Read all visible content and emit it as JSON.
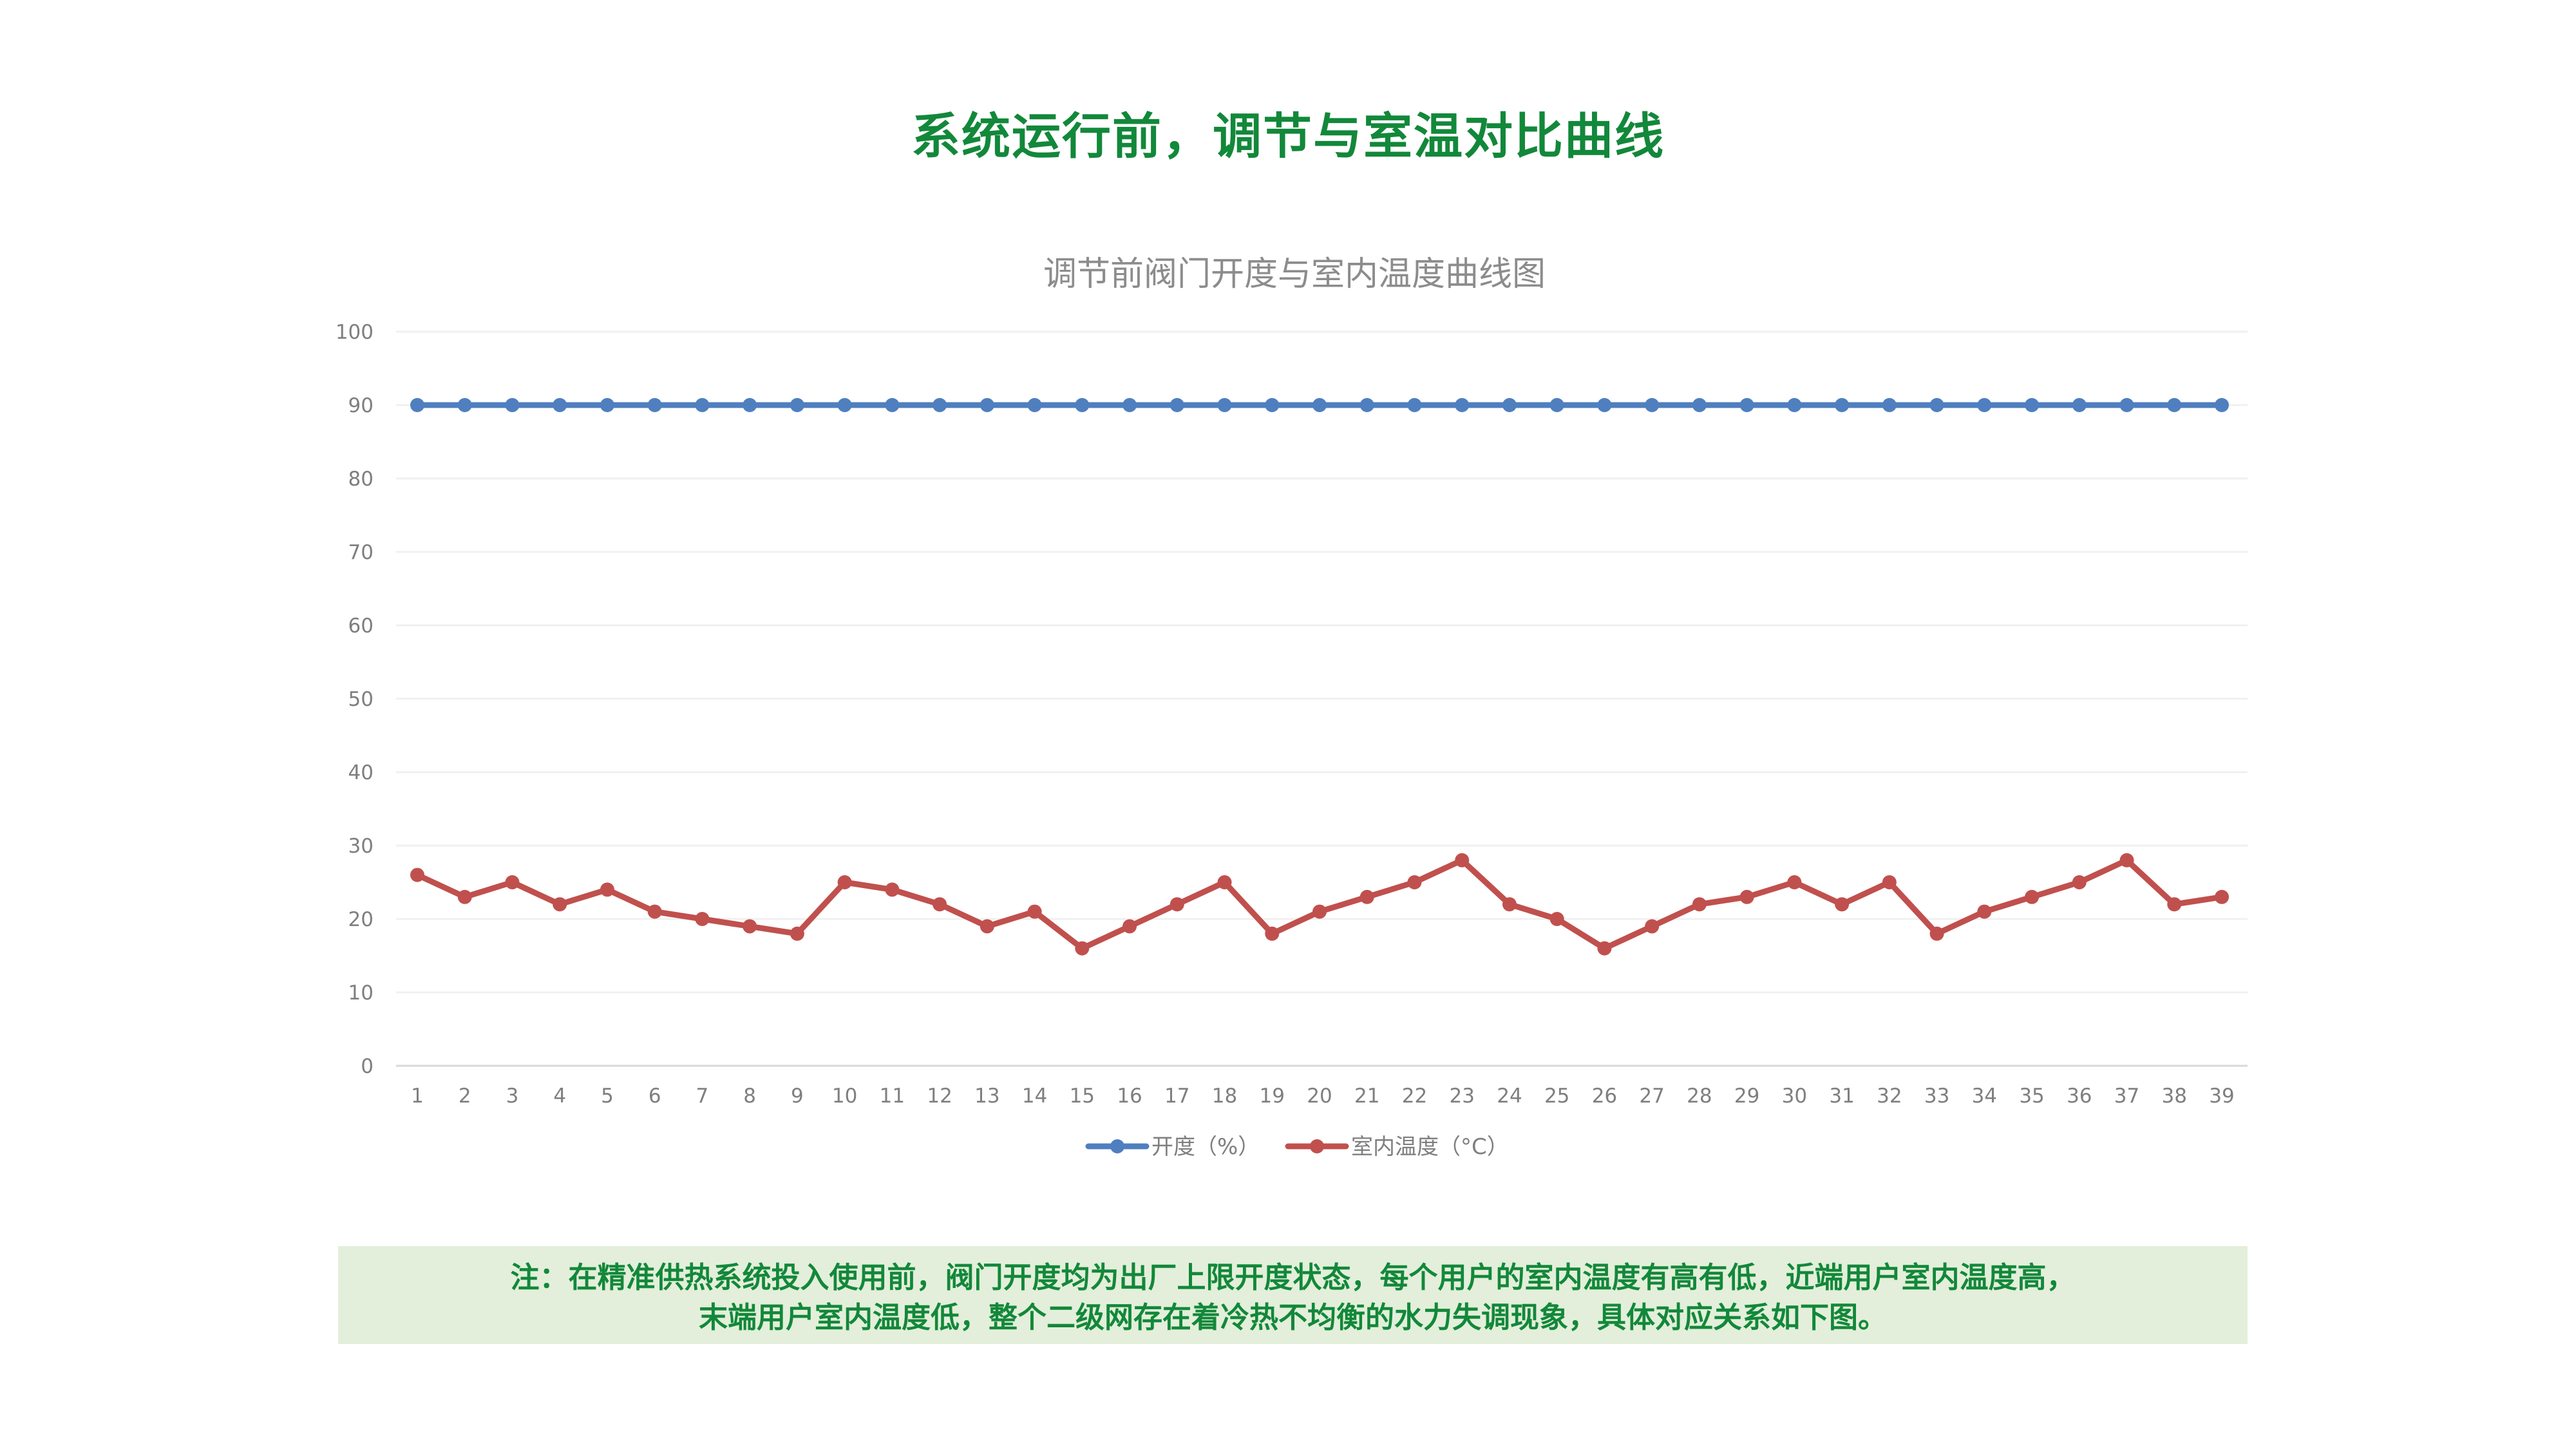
{
  "page": {
    "title": "系统运行前，调节与室温对比曲线",
    "note_lines": [
      "注：在精准供热系统投入使用前，阀门开度均为出厂上限开度状态，每个用户的室内温度有高有低，近端用户室内温度高，",
      "末端用户室内温度低，整个二级网存在着冷热不均衡的水力失调现象，具体对应关系如下图。"
    ]
  },
  "colors": {
    "title_green": "#12883a",
    "note_bg": "#e3efda",
    "series_blue": "#4f7fbf",
    "series_red": "#c0504d"
  },
  "chart_data": {
    "type": "line",
    "title": "调节前阀门开度与室内温度曲线图",
    "xlabel": "",
    "ylabel": "",
    "ylim": [
      0,
      100
    ],
    "y_ticks": [
      0,
      10,
      20,
      30,
      40,
      50,
      60,
      70,
      80,
      90,
      100
    ],
    "grid": true,
    "legend_position": "bottom",
    "x": [
      1,
      2,
      3,
      4,
      5,
      6,
      7,
      8,
      9,
      10,
      11,
      12,
      13,
      14,
      15,
      16,
      17,
      18,
      19,
      20,
      21,
      22,
      23,
      24,
      25,
      26,
      27,
      28,
      29,
      30,
      31,
      32,
      33,
      34,
      35,
      36,
      37,
      38,
      39
    ],
    "series": [
      {
        "name": "开度（%）",
        "color": "#4f7fbf",
        "values": [
          90,
          90,
          90,
          90,
          90,
          90,
          90,
          90,
          90,
          90,
          90,
          90,
          90,
          90,
          90,
          90,
          90,
          90,
          90,
          90,
          90,
          90,
          90,
          90,
          90,
          90,
          90,
          90,
          90,
          90,
          90,
          90,
          90,
          90,
          90,
          90,
          90,
          90,
          90
        ]
      },
      {
        "name": "室内温度（°C）",
        "color": "#c0504d",
        "values": [
          26,
          23,
          25,
          22,
          24,
          21,
          20,
          19,
          18,
          25,
          24,
          22,
          19,
          21,
          16,
          19,
          22,
          25,
          18,
          21,
          23,
          25,
          28,
          22,
          20,
          16,
          19,
          22,
          23,
          25,
          22,
          25,
          18,
          21,
          23,
          25,
          28,
          22,
          23
        ]
      }
    ]
  }
}
